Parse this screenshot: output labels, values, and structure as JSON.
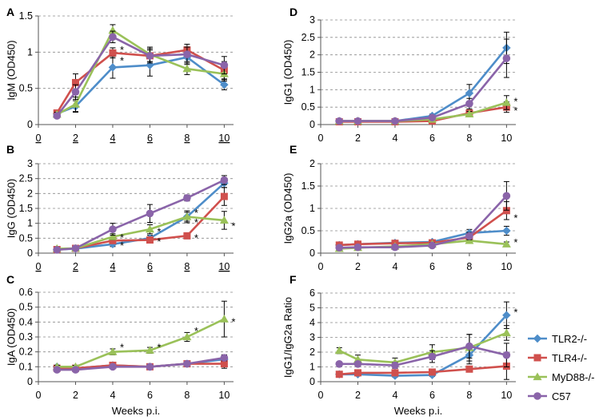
{
  "colors": {
    "TLR2-/-": "#4e8dc9",
    "TLR4-/-": "#d0504d",
    "MyD88-/-": "#9ac159",
    "C57": "#8a64a9"
  },
  "legend": [
    "TLR2-/-",
    "TLR4-/-",
    "MyD88-/-",
    "C57"
  ],
  "chart_data": [
    {
      "panel": "A",
      "type": "line",
      "ylabel": "IgM (OD450)",
      "xlabel": "",
      "x": [
        1,
        2,
        4,
        6,
        8,
        10
      ],
      "xticks": [
        0,
        2,
        4,
        6,
        8,
        10
      ],
      "ylim": [
        0,
        1.5
      ],
      "yticks": [
        0,
        0.5,
        1,
        1.5
      ],
      "ytick_labels": [
        "0",
        "0.5",
        "1",
        "1.5"
      ],
      "series": [
        {
          "name": "TLR2-/-",
          "values": [
            0.15,
            0.25,
            0.79,
            0.82,
            0.93,
            0.55
          ],
          "err": [
            0.03,
            0.08,
            0.15,
            0.15,
            0.1,
            0.07
          ]
        },
        {
          "name": "TLR4-/-",
          "values": [
            0.16,
            0.58,
            0.99,
            0.95,
            1.03,
            0.75
          ],
          "err": [
            0.03,
            0.12,
            0.07,
            0.08,
            0.08,
            0.12
          ]
        },
        {
          "name": "MyD88-/-",
          "values": [
            0.14,
            0.28,
            1.3,
            0.97,
            0.77,
            0.7
          ],
          "err": [
            0.03,
            0.1,
            0.08,
            0.1,
            0.08,
            0.1
          ]
        },
        {
          "name": "C57",
          "values": [
            0.12,
            0.45,
            1.21,
            0.95,
            0.97,
            0.82
          ],
          "err": [
            0.03,
            0.1,
            0.08,
            0.1,
            0.1,
            0.12
          ]
        }
      ],
      "stars": [
        {
          "x": 4,
          "y": 1.07
        },
        {
          "x": 4,
          "y": 0.92
        }
      ]
    },
    {
      "panel": "B",
      "type": "line",
      "ylabel": "IgG (OD450)",
      "xlabel": "",
      "x": [
        1,
        2,
        4,
        6,
        8,
        10
      ],
      "xticks": [
        0,
        2,
        4,
        6,
        8,
        10
      ],
      "ylim": [
        0,
        3
      ],
      "yticks": [
        0,
        0.5,
        1,
        1.5,
        2,
        2.5,
        3
      ],
      "ytick_labels": [
        "0",
        "0.5",
        "1",
        "1.5",
        "2",
        "2.5",
        "3"
      ],
      "series": [
        {
          "name": "TLR2-/-",
          "values": [
            0.12,
            0.15,
            0.3,
            0.5,
            1.22,
            2.35
          ],
          "err": [
            0.03,
            0.04,
            0.08,
            0.1,
            0.15,
            0.15
          ]
        },
        {
          "name": "TLR4-/-",
          "values": [
            0.12,
            0.16,
            0.42,
            0.44,
            0.58,
            1.9
          ],
          "err": [
            0.03,
            0.04,
            0.08,
            0.1,
            0.1,
            0.3
          ]
        },
        {
          "name": "MyD88-/-",
          "values": [
            0.15,
            0.16,
            0.55,
            0.8,
            1.22,
            1.1
          ],
          "err": [
            0.03,
            0.04,
            0.1,
            0.15,
            0.2,
            0.3
          ]
        },
        {
          "name": "C57",
          "values": [
            0.11,
            0.16,
            0.8,
            1.33,
            1.85,
            2.45
          ],
          "err": [
            0.03,
            0.04,
            0.2,
            0.3,
            0.1,
            0.15
          ]
        }
      ],
      "stars": [
        {
          "x": 4,
          "y": 0.62
        },
        {
          "x": 4,
          "y": 0.35
        },
        {
          "x": 6,
          "y": 0.82
        },
        {
          "x": 6,
          "y": 0.48
        },
        {
          "x": 8,
          "y": 1.45
        },
        {
          "x": 8,
          "y": 1.12
        },
        {
          "x": 8,
          "y": 0.6
        },
        {
          "x": 10,
          "y": 1.0
        }
      ]
    },
    {
      "panel": "C",
      "type": "line",
      "ylabel": "IgA (OD450)",
      "xlabel": "Weeks p.i.",
      "x": [
        1,
        2,
        4,
        6,
        8,
        10
      ],
      "xticks": [
        0,
        2,
        4,
        6,
        8,
        10
      ],
      "ylim": [
        0,
        0.6
      ],
      "yticks": [
        0,
        0.1,
        0.2,
        0.3,
        0.4,
        0.5,
        0.6
      ],
      "ytick_labels": [
        "0",
        "0.1",
        "0.2",
        "0.3",
        "0.4",
        "0.5",
        "0.6"
      ],
      "series": [
        {
          "name": "TLR2-/-",
          "values": [
            0.1,
            0.09,
            0.11,
            0.1,
            0.12,
            0.15
          ],
          "err": [
            0.01,
            0.01,
            0.01,
            0.01,
            0.01,
            0.03
          ]
        },
        {
          "name": "TLR4-/-",
          "values": [
            0.09,
            0.09,
            0.11,
            0.1,
            0.12,
            0.12
          ],
          "err": [
            0.01,
            0.01,
            0.01,
            0.01,
            0.01,
            0.03
          ]
        },
        {
          "name": "MyD88-/-",
          "values": [
            0.1,
            0.1,
            0.2,
            0.21,
            0.3,
            0.42
          ],
          "err": [
            0.01,
            0.01,
            0.02,
            0.02,
            0.03,
            0.12
          ]
        },
        {
          "name": "C57",
          "values": [
            0.08,
            0.08,
            0.1,
            0.1,
            0.12,
            0.16
          ],
          "err": [
            0.01,
            0.01,
            0.01,
            0.01,
            0.01,
            0.02
          ]
        }
      ],
      "stars": [
        {
          "x": 4,
          "y": 0.25
        },
        {
          "x": 6,
          "y": 0.25
        },
        {
          "x": 8,
          "y": 0.36
        },
        {
          "x": 10,
          "y": 0.42
        }
      ]
    },
    {
      "panel": "D",
      "type": "line",
      "ylabel": "IgG1 (OD450)",
      "xlabel": "",
      "x": [
        1,
        2,
        4,
        6,
        8,
        10
      ],
      "xticks": [
        0,
        2,
        4,
        6,
        8,
        10
      ],
      "ylim": [
        0,
        3
      ],
      "yticks": [
        0,
        0.5,
        1,
        1.5,
        2,
        2.5,
        3
      ],
      "ytick_labels": [
        "0",
        "0.5",
        "1",
        "1.5",
        "2",
        "2.5",
        "3"
      ],
      "series": [
        {
          "name": "TLR2-/-",
          "values": [
            0.1,
            0.1,
            0.1,
            0.25,
            0.9,
            2.2
          ],
          "err": [
            0.02,
            0.02,
            0.03,
            0.05,
            0.25,
            0.45
          ]
        },
        {
          "name": "TLR4-/-",
          "values": [
            0.08,
            0.08,
            0.08,
            0.1,
            0.33,
            0.5
          ],
          "err": [
            0.02,
            0.02,
            0.02,
            0.03,
            0.08,
            0.15
          ]
        },
        {
          "name": "MyD88-/-",
          "values": [
            0.1,
            0.1,
            0.1,
            0.15,
            0.3,
            0.63
          ],
          "err": [
            0.02,
            0.02,
            0.02,
            0.03,
            0.08,
            0.2
          ]
        },
        {
          "name": "C57",
          "values": [
            0.1,
            0.1,
            0.1,
            0.2,
            0.6,
            1.9
          ],
          "err": [
            0.02,
            0.02,
            0.02,
            0.05,
            0.15,
            0.55
          ]
        }
      ],
      "stars": [
        {
          "x": 10,
          "y": 0.75
        },
        {
          "x": 10,
          "y": 0.48
        }
      ]
    },
    {
      "panel": "E",
      "type": "line",
      "ylabel": "IgG2a (OD450)",
      "xlabel": "",
      "x": [
        1,
        2,
        4,
        6,
        8,
        10
      ],
      "xticks": [
        0,
        2,
        4,
        6,
        8,
        10
      ],
      "ylim": [
        0,
        2
      ],
      "yticks": [
        0,
        0.5,
        1,
        1.5,
        2
      ],
      "ytick_labels": [
        "0",
        "0.5",
        "1",
        "1.5",
        "2"
      ],
      "series": [
        {
          "name": "TLR2-/-",
          "values": [
            0.18,
            0.2,
            0.23,
            0.25,
            0.45,
            0.5
          ],
          "err": [
            0.02,
            0.02,
            0.03,
            0.03,
            0.08,
            0.1
          ]
        },
        {
          "name": "TLR4-/-",
          "values": [
            0.18,
            0.2,
            0.22,
            0.23,
            0.35,
            0.95
          ],
          "err": [
            0.02,
            0.02,
            0.03,
            0.03,
            0.08,
            0.2
          ]
        },
        {
          "name": "MyD88-/-",
          "values": [
            0.1,
            0.12,
            0.15,
            0.2,
            0.28,
            0.2
          ],
          "err": [
            0.02,
            0.02,
            0.03,
            0.03,
            0.05,
            0.05
          ]
        },
        {
          "name": "C57",
          "values": [
            0.12,
            0.13,
            0.13,
            0.17,
            0.38,
            1.28
          ],
          "err": [
            0.02,
            0.02,
            0.03,
            0.03,
            0.08,
            0.32
          ]
        }
      ],
      "stars": [
        {
          "x": 10,
          "y": 0.85
        },
        {
          "x": 10,
          "y": 0.3
        }
      ]
    },
    {
      "panel": "F",
      "type": "line",
      "ylabel": "IgG1/IgG2a Ratio",
      "xlabel": "Weeks p.i.",
      "x": [
        1,
        2,
        4,
        6,
        8,
        10
      ],
      "xticks": [
        0,
        2,
        4,
        6,
        8,
        10
      ],
      "ylim": [
        0,
        6
      ],
      "yticks": [
        0,
        1,
        2,
        3,
        4,
        5,
        6
      ],
      "ytick_labels": [
        "0",
        "1",
        "2",
        "3",
        "4",
        "5",
        "6"
      ],
      "series": [
        {
          "name": "TLR2-/-",
          "values": [
            0.5,
            0.5,
            0.4,
            0.45,
            1.8,
            4.5
          ],
          "err": [
            0.1,
            0.1,
            0.1,
            0.1,
            0.6,
            0.9
          ]
        },
        {
          "name": "TLR4-/-",
          "values": [
            0.5,
            0.6,
            0.6,
            0.65,
            0.85,
            1.05
          ],
          "err": [
            0.1,
            0.1,
            0.1,
            0.1,
            0.2,
            0.9
          ]
        },
        {
          "name": "MyD88-/-",
          "values": [
            2.1,
            1.5,
            1.3,
            2.0,
            2.3,
            3.3
          ],
          "err": [
            0.2,
            0.3,
            0.3,
            0.5,
            0.9,
            0.5
          ]
        },
        {
          "name": "C57",
          "values": [
            1.2,
            1.2,
            1.1,
            1.7,
            2.4,
            1.8
          ],
          "err": [
            0.1,
            0.1,
            0.2,
            0.4,
            0.8,
            0.8
          ]
        }
      ],
      "stars": [
        {
          "x": 10,
          "y": 4.9
        }
      ]
    }
  ]
}
